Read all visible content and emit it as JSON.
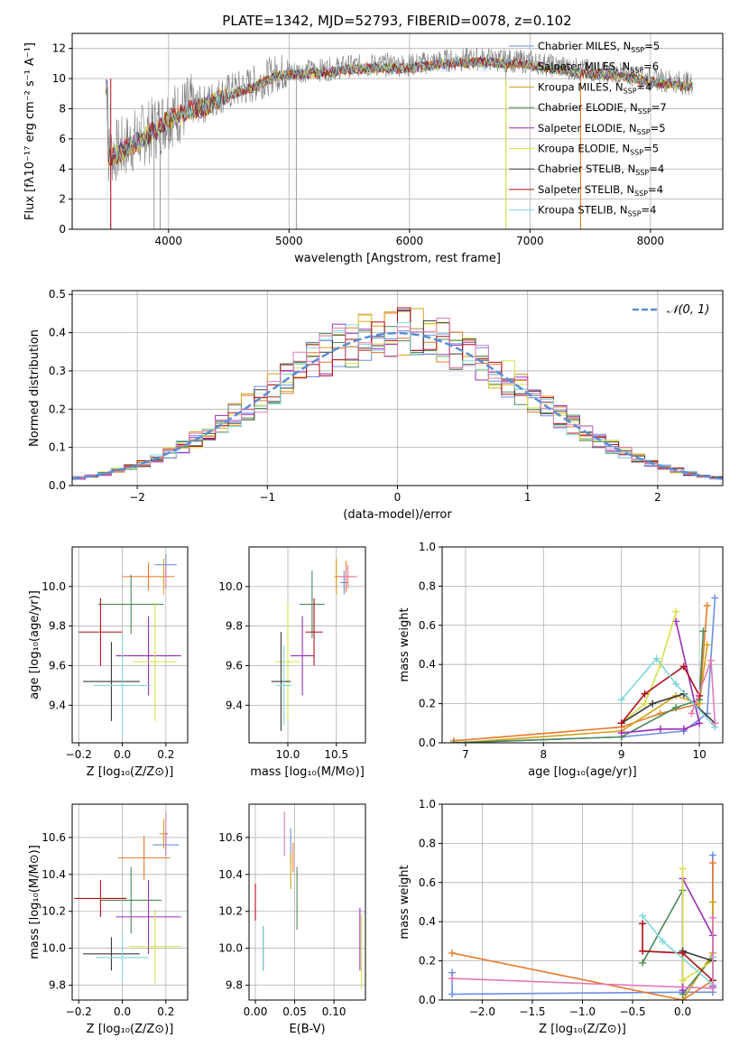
{
  "title": "PLATE=1342, MJD=52793, FIBERID=0078, z=0.102",
  "colors": {
    "chabrier_miles": "#6b8fe0",
    "salpeter_miles": "#e8782a",
    "kroupa_miles": "#d4a017",
    "chabrier_elodie": "#4d8a5a",
    "salpeter_elodie": "#9a2dbb",
    "kroupa_elodie": "#d7e04a",
    "chabrier_stelib": "#3a3a3a",
    "salpeter_stelib": "#b00e18",
    "kroupa_stelib": "#7fd8d8",
    "pink": "#e07ab8",
    "data": "#808080"
  },
  "chart_data": [
    {
      "id": "spectrum",
      "type": "line",
      "xlabel": "wavelength [Angstrom, rest frame]",
      "ylabel": "Flux [fλ10⁻¹⁷ erg cm⁻² s⁻¹ A⁻¹]",
      "xlim": [
        3200,
        8600
      ],
      "ylim": [
        0,
        13
      ],
      "xticks": [
        "4000",
        "5000",
        "6000",
        "7000",
        "8000"
      ],
      "yticks": [
        "0",
        "2",
        "4",
        "6",
        "8",
        "10",
        "12"
      ],
      "legend_position": "right",
      "legend": [
        "Chabrier MILES, N_SSP=5",
        "Salpeter MILES, N_SSP=6",
        "Kroupa MILES, N_SSP=4",
        "Chabrier ELODIE, N_SSP=7",
        "Salpeter ELODIE, N_SSP=5",
        "Kroupa ELODIE, N_SSP=5",
        "Chabrier STELIB, N_SSP=4",
        "Salpeter STELIB, N_SSP=4",
        "Kroupa STELIB, N_SSP=4"
      ],
      "continuum": [
        [
          3500,
          5.0
        ],
        [
          3600,
          5.3
        ],
        [
          3700,
          5.8
        ],
        [
          3800,
          6.3
        ],
        [
          3900,
          6.8
        ],
        [
          4000,
          7.5
        ],
        [
          4100,
          7.8
        ],
        [
          4200,
          8.2
        ],
        [
          4300,
          8.3
        ],
        [
          4400,
          8.8
        ],
        [
          4500,
          9.1
        ],
        [
          4700,
          9.6
        ],
        [
          4900,
          10.4
        ],
        [
          5100,
          10.5
        ],
        [
          5300,
          10.6
        ],
        [
          5500,
          10.8
        ],
        [
          5700,
          10.9
        ],
        [
          6000,
          10.9
        ],
        [
          6300,
          11.2
        ],
        [
          6600,
          11.3
        ],
        [
          7000,
          11.1
        ],
        [
          7400,
          10.6
        ],
        [
          7800,
          10.3
        ],
        [
          8000,
          10.0
        ],
        [
          8300,
          9.7
        ]
      ],
      "spikes_down": [
        [
          3520,
          0
        ],
        [
          3880,
          0
        ],
        [
          3930,
          0
        ],
        [
          5060,
          0
        ],
        [
          6800,
          0
        ],
        [
          7420,
          0
        ]
      ]
    },
    {
      "id": "residuals",
      "type": "line",
      "xlabel": "(data-model)/error",
      "ylabel": "Normed distribution",
      "xlim": [
        -2.5,
        2.5
      ],
      "ylim": [
        0,
        0.51
      ],
      "xticks": [
        "−2",
        "−1",
        "0",
        "1",
        "2"
      ],
      "yticks": [
        "0.0",
        "0.1",
        "0.2",
        "0.3",
        "0.4",
        "0.5"
      ],
      "legend": [
        "𝒩(0, 1)"
      ],
      "legend_position": "top-right",
      "bin_width": 0.1
    },
    {
      "id": "age_vs_Z",
      "type": "scatter",
      "xlabel": "Z [log₁₀(Z/Z⊙)]",
      "ylabel": "age  [log₁₀(age/yr)]",
      "xlim": [
        -0.23,
        0.3
      ],
      "ylim": [
        9.21,
        10.2
      ],
      "xticks": [
        "−0.2",
        "0.0",
        "0.2"
      ],
      "yticks": [
        "9.4",
        "9.6",
        "9.8",
        "10.0"
      ],
      "points": [
        {
          "c": "chabrier_miles",
          "x": 0.2,
          "y": 10.11,
          "dx": 0.05,
          "dy": 0.05
        },
        {
          "c": "salpeter_miles",
          "x": 0.12,
          "y": 10.05,
          "dx": 0.12,
          "dy": 0.07
        },
        {
          "c": "kroupa_miles",
          "x": 0.19,
          "y": 10.05,
          "dx": 0.02,
          "dy": 0.09
        },
        {
          "c": "chabrier_elodie",
          "x": 0.04,
          "y": 9.91,
          "dx": 0.15,
          "dy": 0.15
        },
        {
          "c": "salpeter_elodie",
          "x": 0.12,
          "y": 9.65,
          "dx": 0.15,
          "dy": 0.2
        },
        {
          "c": "kroupa_elodie",
          "x": 0.15,
          "y": 9.62,
          "dx": 0.1,
          "dy": 0.3
        },
        {
          "c": "chabrier_stelib",
          "x": -0.05,
          "y": 9.52,
          "dx": 0.13,
          "dy": 0.2
        },
        {
          "c": "salpeter_stelib",
          "x": -0.1,
          "y": 9.77,
          "dx": 0.1,
          "dy": 0.17
        },
        {
          "c": "kroupa_stelib",
          "x": 0.0,
          "y": 9.5,
          "dx": 0.13,
          "dy": 0.25
        },
        {
          "c": "pink",
          "x": 0.2,
          "y": 10.05,
          "dx": 0.01,
          "dy": 0.06
        }
      ]
    },
    {
      "id": "age_vs_mass",
      "type": "scatter",
      "xlabel": "mass [log₁₀(M/M⊙)]",
      "ylabel": "",
      "xlim": [
        9.6,
        10.8
      ],
      "ylim": [
        9.21,
        10.2
      ],
      "xticks": [
        "10.0",
        "10.5"
      ],
      "yticks": [
        "9.4",
        "9.6",
        "9.8",
        "10.0"
      ],
      "points": [
        {
          "c": "chabrier_miles",
          "x": 10.58,
          "y": 10.02,
          "dx": 0.04,
          "dy": 0.06
        },
        {
          "c": "salpeter_miles",
          "x": 10.6,
          "y": 10.05,
          "dx": 0.1,
          "dy": 0.08
        },
        {
          "c": "kroupa_miles",
          "x": 10.5,
          "y": 10.05,
          "dx": 0.02,
          "dy": 0.09
        },
        {
          "c": "chabrier_elodie",
          "x": 10.25,
          "y": 9.91,
          "dx": 0.13,
          "dy": 0.17
        },
        {
          "c": "salpeter_elodie",
          "x": 10.15,
          "y": 9.65,
          "dx": 0.12,
          "dy": 0.2
        },
        {
          "c": "kroupa_elodie",
          "x": 10.0,
          "y": 9.62,
          "dx": 0.13,
          "dy": 0.3
        },
        {
          "c": "chabrier_stelib",
          "x": 9.93,
          "y": 9.52,
          "dx": 0.1,
          "dy": 0.25
        },
        {
          "c": "salpeter_stelib",
          "x": 10.27,
          "y": 9.77,
          "dx": 0.09,
          "dy": 0.17
        },
        {
          "c": "kroupa_stelib",
          "x": 9.96,
          "y": 9.5,
          "dx": 0.08,
          "dy": 0.2
        },
        {
          "c": "pink",
          "x": 10.62,
          "y": 10.05,
          "dx": 0.1,
          "dy": 0.06
        }
      ]
    },
    {
      "id": "weight_vs_age",
      "type": "line",
      "xlabel": "age  [log₁₀(age/yr)]",
      "ylabel": "mass weight",
      "xlim": [
        6.7,
        10.3
      ],
      "ylim": [
        0,
        1
      ],
      "xticks": [
        "7",
        "8",
        "9",
        "10"
      ],
      "yticks": [
        "0.0",
        "0.2",
        "0.4",
        "0.6",
        "0.8",
        "1.0"
      ],
      "series": [
        {
          "c": "chabrier_miles",
          "pts": [
            [
              6.85,
              0.0
            ],
            [
              9.0,
              0.03
            ],
            [
              9.8,
              0.06
            ],
            [
              10.1,
              0.15
            ],
            [
              10.2,
              0.74
            ]
          ]
        },
        {
          "c": "salpeter_miles",
          "pts": [
            [
              6.85,
              0.01
            ],
            [
              9.0,
              0.08
            ],
            [
              9.5,
              0.15
            ],
            [
              10.0,
              0.2
            ],
            [
              10.1,
              0.7
            ]
          ]
        },
        {
          "c": "kroupa_miles",
          "pts": [
            [
              6.9,
              0.0
            ],
            [
              9.0,
              0.06
            ],
            [
              9.7,
              0.24
            ],
            [
              10.0,
              0.2
            ],
            [
              10.1,
              0.5
            ]
          ]
        },
        {
          "c": "chabrier_elodie",
          "pts": [
            [
              6.85,
              0.0
            ],
            [
              9.0,
              0.03
            ],
            [
              9.7,
              0.18
            ],
            [
              10.0,
              0.22
            ],
            [
              10.05,
              0.57
            ]
          ]
        },
        {
          "c": "salpeter_elodie",
          "pts": [
            [
              9.0,
              0.05
            ],
            [
              9.5,
              0.07
            ],
            [
              9.8,
              0.07
            ],
            [
              10.0,
              0.1
            ],
            [
              9.7,
              0.62
            ]
          ]
        },
        {
          "c": "kroupa_elodie",
          "pts": [
            [
              9.0,
              0.1
            ],
            [
              9.3,
              0.2
            ],
            [
              9.5,
              0.4
            ],
            [
              9.7,
              0.67
            ]
          ]
        },
        {
          "c": "chabrier_stelib",
          "pts": [
            [
              9.0,
              0.1
            ],
            [
              9.4,
              0.2
            ],
            [
              9.8,
              0.25
            ],
            [
              10.2,
              0.1
            ]
          ]
        },
        {
          "c": "salpeter_stelib",
          "pts": [
            [
              9.0,
              0.1
            ],
            [
              9.3,
              0.25
            ],
            [
              9.8,
              0.39
            ],
            [
              10.0,
              0.24
            ]
          ]
        },
        {
          "c": "kroupa_stelib",
          "pts": [
            [
              9.0,
              0.22
            ],
            [
              9.45,
              0.43
            ],
            [
              9.7,
              0.3
            ],
            [
              10.2,
              0.08
            ]
          ]
        },
        {
          "c": "pink",
          "pts": [
            [
              9.9,
              0.15
            ],
            [
              10.15,
              0.42
            ],
            [
              10.2,
              0.1
            ]
          ]
        }
      ]
    },
    {
      "id": "mass_vs_Z",
      "type": "scatter",
      "xlabel": "Z [log₁₀(Z/Z⊙)]",
      "ylabel": "mass [log₁₀(M/M⊙)]",
      "xlim": [
        -0.23,
        0.3
      ],
      "ylim": [
        9.72,
        10.78
      ],
      "xticks": [
        "−0.2",
        "0.0",
        "0.2"
      ],
      "yticks": [
        "9.8",
        "10.0",
        "10.2",
        "10.4",
        "10.6"
      ],
      "points": [
        {
          "c": "chabrier_miles",
          "x": 0.2,
          "y": 10.56,
          "dx": 0.06,
          "dy": 0.06
        },
        {
          "c": "salpeter_miles",
          "x": 0.1,
          "y": 10.49,
          "dx": 0.12,
          "dy": 0.12
        },
        {
          "c": "kroupa_miles",
          "x": 0.19,
          "y": 10.62,
          "dx": 0.02,
          "dy": 0.08
        },
        {
          "c": "chabrier_elodie",
          "x": 0.04,
          "y": 10.26,
          "dx": 0.14,
          "dy": 0.18
        },
        {
          "c": "salpeter_elodie",
          "x": 0.12,
          "y": 10.17,
          "dx": 0.15,
          "dy": 0.2
        },
        {
          "c": "kroupa_elodie",
          "x": 0.15,
          "y": 10.01,
          "dx": 0.12,
          "dy": 0.2
        },
        {
          "c": "chabrier_stelib",
          "x": -0.05,
          "y": 9.97,
          "dx": 0.13,
          "dy": 0.09
        },
        {
          "c": "salpeter_stelib",
          "x": -0.1,
          "y": 10.27,
          "dx": 0.12,
          "dy": 0.1
        },
        {
          "c": "kroupa_stelib",
          "x": 0.0,
          "y": 9.95,
          "dx": 0.12,
          "dy": 0.13
        },
        {
          "c": "pink",
          "x": 0.2,
          "y": 10.62,
          "dx": 0.01,
          "dy": 0.12
        }
      ]
    },
    {
      "id": "mass_vs_ebv",
      "type": "scatter",
      "xlabel": "E(B-V)",
      "ylabel": "",
      "xlim": [
        -0.008,
        0.14
      ],
      "ylim": [
        9.72,
        10.78
      ],
      "xticks": [
        "0.00",
        "0.05",
        "0.10"
      ],
      "yticks": [
        "9.8",
        "10.0",
        "10.2",
        "10.4",
        "10.6"
      ],
      "points": [
        {
          "c": "chabrier_miles",
          "x": 0.045,
          "y": 10.55,
          "dx": 0,
          "dy": 0.1
        },
        {
          "c": "salpeter_miles",
          "x": 0.048,
          "y": 10.49,
          "dx": 0,
          "dy": 0.08
        },
        {
          "c": "kroupa_miles",
          "x": 0.045,
          "y": 10.42,
          "dx": 0,
          "dy": 0.1
        },
        {
          "c": "chabrier_elodie",
          "x": 0.053,
          "y": 10.27,
          "dx": 0,
          "dy": 0.17
        },
        {
          "c": "salpeter_elodie",
          "x": 0.133,
          "y": 10.05,
          "dx": 0,
          "dy": 0.17
        },
        {
          "c": "kroupa_elodie",
          "x": 0.135,
          "y": 9.98,
          "dx": 0,
          "dy": 0.2
        },
        {
          "c": "chabrier_stelib",
          "x": 0.01,
          "y": 10.0,
          "dx": 0,
          "dy": 0.12
        },
        {
          "c": "salpeter_stelib",
          "x": 0.0,
          "y": 10.25,
          "dx": 0,
          "dy": 0.1
        },
        {
          "c": "kroupa_stelib",
          "x": 0.01,
          "y": 10.0,
          "dx": 0,
          "dy": 0.12
        },
        {
          "c": "pink",
          "x": 0.037,
          "y": 10.62,
          "dx": 0,
          "dy": 0.12
        }
      ]
    },
    {
      "id": "weight_vs_Z",
      "type": "line",
      "xlabel": "Z [log₁₀(Z/Z⊙)]",
      "ylabel": "mass weight",
      "xlim": [
        -2.4,
        0.4
      ],
      "ylim": [
        0,
        1
      ],
      "xticks": [
        "−2.0",
        "−1.5",
        "−1.0",
        "−0.5",
        "0.0"
      ],
      "yticks": [
        "0.0",
        "0.2",
        "0.4",
        "0.6",
        "0.8",
        "1.0"
      ],
      "series": [
        {
          "c": "chabrier_miles",
          "pts": [
            [
              -2.3,
              0.14
            ],
            [
              -2.3,
              0.03
            ],
            [
              0.0,
              0.04
            ],
            [
              0.3,
              0.04
            ],
            [
              0.3,
              0.74
            ]
          ]
        },
        {
          "c": "salpeter_miles",
          "pts": [
            [
              -2.3,
              0.24
            ],
            [
              0.0,
              0.0
            ],
            [
              0.3,
              0.1
            ],
            [
              0.3,
              0.7
            ]
          ]
        },
        {
          "c": "kroupa_miles",
          "pts": [
            [
              0.0,
              0.0
            ],
            [
              0.3,
              0.24
            ],
            [
              0.3,
              0.5
            ]
          ]
        },
        {
          "c": "chabrier_elodie",
          "pts": [
            [
              -0.4,
              0.19
            ],
            [
              0.0,
              0.56
            ],
            [
              0.0,
              0.03
            ],
            [
              0.3,
              0.22
            ]
          ]
        },
        {
          "c": "salpeter_elodie",
          "pts": [
            [
              0.0,
              0.05
            ],
            [
              0.0,
              0.62
            ],
            [
              0.3,
              0.33
            ],
            [
              0.3,
              0.07
            ]
          ]
        },
        {
          "c": "kroupa_elodie",
          "pts": [
            [
              0.0,
              0.67
            ],
            [
              0.0,
              0.1
            ],
            [
              0.3,
              0.2
            ]
          ]
        },
        {
          "c": "chabrier_stelib",
          "pts": [
            [
              0.0,
              0.25
            ],
            [
              0.3,
              0.2
            ],
            [
              0.3,
              0.1
            ]
          ]
        },
        {
          "c": "salpeter_stelib",
          "pts": [
            [
              -0.4,
              0.39
            ],
            [
              -0.4,
              0.25
            ],
            [
              0.0,
              0.24
            ],
            [
              0.3,
              0.1
            ]
          ]
        },
        {
          "c": "kroupa_stelib",
          "pts": [
            [
              -0.4,
              0.43
            ],
            [
              -0.2,
              0.3
            ],
            [
              0.3,
              0.08
            ],
            [
              0.3,
              0.22
            ]
          ]
        },
        {
          "c": "pink",
          "pts": [
            [
              -2.3,
              0.11
            ],
            [
              0.3,
              0.06
            ],
            [
              0.3,
              0.42
            ]
          ]
        }
      ]
    }
  ]
}
